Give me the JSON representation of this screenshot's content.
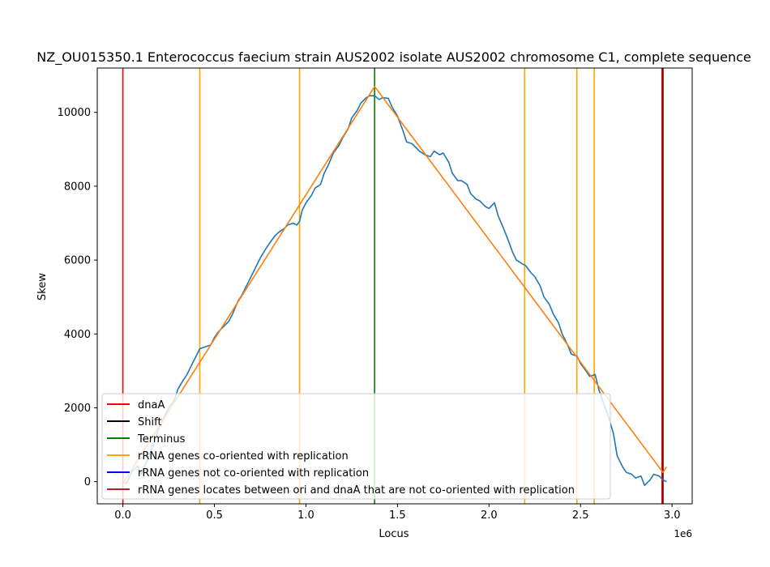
{
  "chart_data": {
    "type": "line",
    "title": "NZ_OU015350.1 Enterococcus faecium strain AUS2002 isolate AUS2002 chromosome C1, complete sequence",
    "xlabel": "Locus",
    "ylabel": "Skew",
    "x_offset_label": "1e6",
    "xlim": [
      -0.14,
      3.11
    ],
    "ylim": [
      -600,
      11200
    ],
    "x_ticks": [
      0.0,
      0.5,
      1.0,
      1.5,
      2.0,
      2.5,
      3.0
    ],
    "x_tick_labels": [
      "0.0",
      "0.5",
      "1.0",
      "1.5",
      "2.0",
      "2.5",
      "3.0"
    ],
    "y_ticks": [
      0,
      2000,
      4000,
      6000,
      8000,
      10000
    ],
    "y_tick_labels": [
      "0",
      "2000",
      "4000",
      "6000",
      "8000",
      "10000"
    ],
    "grid": false,
    "legend_placement": "lower-left",
    "legend": [
      {
        "label": "dnaA",
        "color": "#ff0000"
      },
      {
        "label": "Shift",
        "color": "#000000"
      },
      {
        "label": "Terminus",
        "color": "#008000"
      },
      {
        "label": "rRNA genes co-oriented with replication",
        "color": "#ffa500"
      },
      {
        "label": "rRNA genes not co-oriented with replication",
        "color": "#0000ff"
      },
      {
        "label": "rRNA genes locates between ori and dnaA that are not co-oriented with replication",
        "color": "#b22222"
      }
    ],
    "vertical_lines": [
      {
        "x": 0.0,
        "color": "#ff0000",
        "kind": "dnaA"
      },
      {
        "x": 2.95,
        "color": "#000000",
        "kind": "Shift"
      },
      {
        "x": 2.945,
        "color": "#ff0000",
        "kind": "dnaA"
      },
      {
        "x": 1.375,
        "color": "#008000",
        "kind": "Terminus"
      },
      {
        "x": 0.42,
        "color": "#ffa500",
        "kind": "rRNA co-oriented"
      },
      {
        "x": 0.965,
        "color": "#ffa500",
        "kind": "rRNA co-oriented"
      },
      {
        "x": 2.195,
        "color": "#ffa500",
        "kind": "rRNA co-oriented"
      },
      {
        "x": 2.48,
        "color": "#ffa500",
        "kind": "rRNA co-oriented"
      },
      {
        "x": 2.575,
        "color": "#ffa500",
        "kind": "rRNA co-oriented"
      }
    ],
    "series": [
      {
        "color": "#1f77b4",
        "x": [
          0.0,
          0.02,
          0.05,
          0.08,
          0.1,
          0.13,
          0.15,
          0.18,
          0.2,
          0.22,
          0.25,
          0.28,
          0.3,
          0.33,
          0.35,
          0.38,
          0.4,
          0.42,
          0.45,
          0.48,
          0.5,
          0.52,
          0.55,
          0.58,
          0.6,
          0.63,
          0.65,
          0.68,
          0.7,
          0.73,
          0.75,
          0.78,
          0.8,
          0.83,
          0.85,
          0.88,
          0.9,
          0.93,
          0.95,
          0.965,
          0.98,
          1.0,
          1.03,
          1.05,
          1.08,
          1.1,
          1.12,
          1.15,
          1.18,
          1.2,
          1.23,
          1.25,
          1.28,
          1.3,
          1.33,
          1.35,
          1.375,
          1.4,
          1.42,
          1.45,
          1.47,
          1.5,
          1.53,
          1.55,
          1.58,
          1.6,
          1.62,
          1.65,
          1.68,
          1.7,
          1.73,
          1.75,
          1.78,
          1.8,
          1.83,
          1.85,
          1.88,
          1.9,
          1.93,
          1.95,
          1.98,
          2.0,
          2.03,
          2.05,
          2.08,
          2.1,
          2.13,
          2.15,
          2.18,
          2.2,
          2.23,
          2.25,
          2.28,
          2.3,
          2.33,
          2.35,
          2.38,
          2.4,
          2.43,
          2.45,
          2.48,
          2.5,
          2.53,
          2.55,
          2.58,
          2.6,
          2.62,
          2.65,
          2.68,
          2.7,
          2.73,
          2.75,
          2.78,
          2.8,
          2.83,
          2.85,
          2.88,
          2.9,
          2.93,
          2.95,
          2.97
        ],
        "y": [
          0,
          -50,
          280,
          420,
          200,
          550,
          800,
          1200,
          1500,
          1700,
          2000,
          2200,
          2500,
          2750,
          2900,
          3200,
          3400,
          3600,
          3650,
          3700,
          3900,
          4050,
          4200,
          4350,
          4550,
          4900,
          5050,
          5350,
          5550,
          5850,
          6050,
          6300,
          6450,
          6650,
          6750,
          6850,
          6950,
          7000,
          6950,
          7050,
          7350,
          7550,
          7750,
          7950,
          8050,
          8350,
          8550,
          8900,
          9100,
          9300,
          9550,
          9850,
          10050,
          10250,
          10400,
          10450,
          10450,
          10350,
          10400,
          10380,
          10150,
          9900,
          9500,
          9200,
          9150,
          9050,
          8950,
          8850,
          8800,
          8950,
          8850,
          8900,
          8650,
          8350,
          8150,
          8150,
          8050,
          7800,
          7650,
          7600,
          7450,
          7400,
          7550,
          7200,
          6850,
          6600,
          6200,
          6000,
          5900,
          5850,
          5650,
          5550,
          5300,
          5000,
          4800,
          4550,
          4300,
          4000,
          3700,
          3450,
          3400,
          3200,
          3000,
          2850,
          2900,
          2500,
          2200,
          1800,
          1300,
          700,
          400,
          250,
          200,
          100,
          150,
          -100,
          50,
          200,
          150,
          50,
          0
        ]
      },
      {
        "color": "#ff7f0e",
        "x": [
          0.0,
          1.375,
          2.95,
          2.97
        ],
        "y": [
          -50,
          10700,
          250,
          400
        ]
      }
    ]
  }
}
